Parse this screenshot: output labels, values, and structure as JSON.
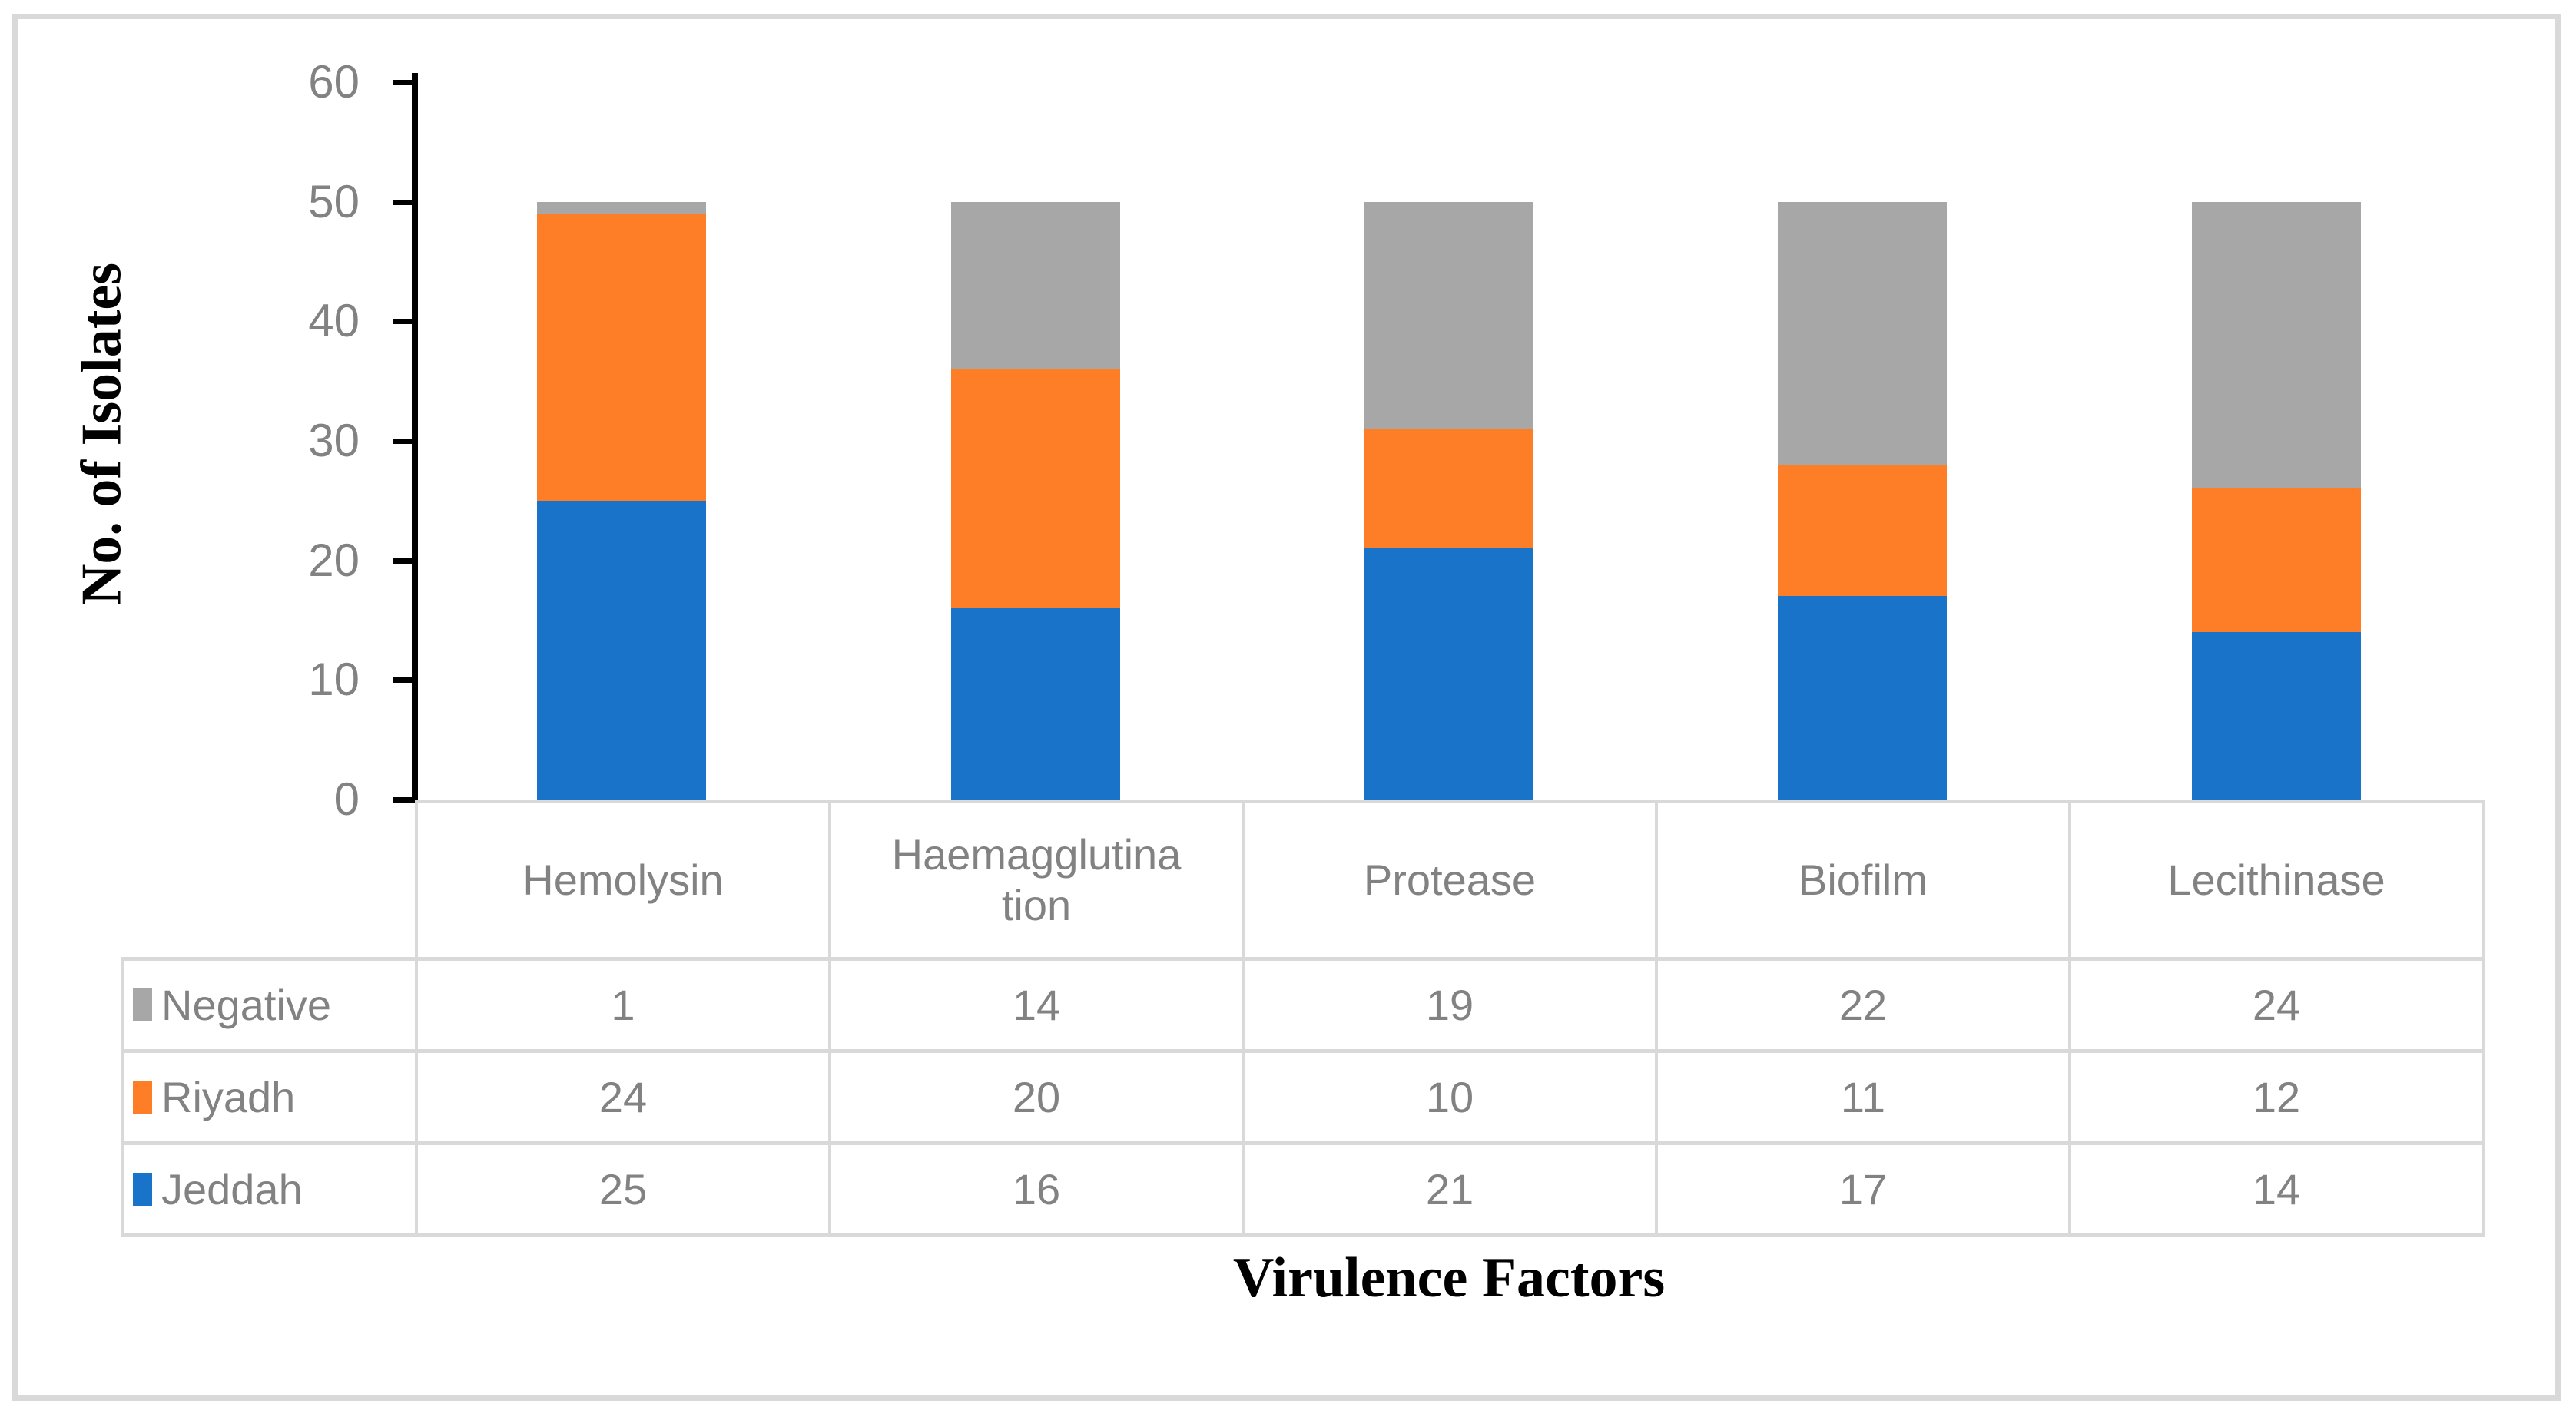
{
  "chart_data": {
    "type": "bar",
    "stacked": true,
    "title": "",
    "xlabel": "Virulence Factors",
    "ylabel": "No. of Isolates",
    "ylim": [
      0,
      60
    ],
    "y_ticks": [
      0,
      10,
      20,
      30,
      40,
      50,
      60
    ],
    "grid": false,
    "legend_position": "data-table-left",
    "categories": [
      "Hemolysin",
      "Haemagglutination",
      "Protease",
      "Biofilm",
      "Lecithinase"
    ],
    "series": [
      {
        "name": "Jeddah",
        "color": "#1873C9",
        "values": [
          25,
          16,
          21,
          17,
          14
        ]
      },
      {
        "name": "Riyadh",
        "color": "#FD7E27",
        "values": [
          24,
          20,
          10,
          11,
          12
        ]
      },
      {
        "name": "Negative",
        "color": "#A7A7A7",
        "values": [
          1,
          14,
          19,
          22,
          24
        ]
      }
    ]
  },
  "axes": {
    "y_title": "No. of Isolates",
    "x_title": "Virulence Factors"
  },
  "data_table": {
    "category_headers": [
      "Hemolysin",
      "Haemagglutina\ntion",
      "Protease",
      "Biofilm",
      "Lecithinase"
    ],
    "rows": [
      {
        "label": "Negative",
        "swatch_color": "#A7A7A7",
        "values": [
          "1",
          "14",
          "19",
          "22",
          "24"
        ]
      },
      {
        "label": "Riyadh",
        "swatch_color": "#FD7E27",
        "values": [
          "24",
          "20",
          "10",
          "11",
          "12"
        ]
      },
      {
        "label": "Jeddah",
        "swatch_color": "#1873C9",
        "values": [
          "25",
          "16",
          "21",
          "17",
          "14"
        ]
      }
    ]
  },
  "colors": {
    "frame_border": "#D9D9D9",
    "table_border": "#D9D9D9",
    "axis_line": "#000000",
    "gray_text": "#828282",
    "background": "#FFFFFF"
  }
}
